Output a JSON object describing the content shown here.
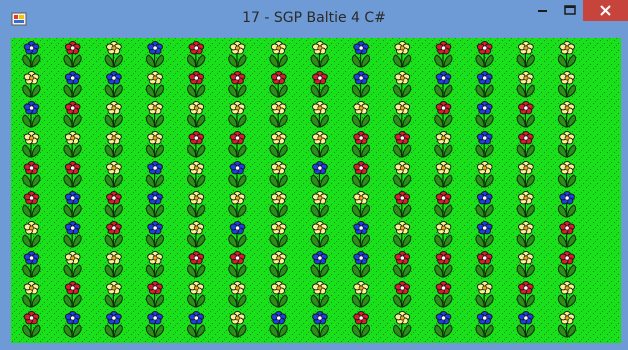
{
  "window": {
    "title": "17 - SGP Baltie 4 C#",
    "titlebar_color": "#6e9bd6",
    "close_color": "#c7443c"
  },
  "icons": {
    "app": "app-icon",
    "minimize": "minimize-icon",
    "maximize": "maximize-icon",
    "close": "close-icon",
    "tile": "flower-icon"
  },
  "playfield": {
    "background_color": "#19e01a",
    "flower_colors": {
      "blue": "#1c3fe6",
      "red": "#d81e2a",
      "yellow": "#f8f090"
    },
    "rows": [
      [
        "blue",
        "red",
        "yellow",
        "blue",
        "red",
        "yellow",
        "yellow",
        "yellow",
        "blue",
        "yellow",
        "red",
        "red",
        "yellow",
        "yellow"
      ],
      [
        "yellow",
        "blue",
        "blue",
        "yellow",
        "red",
        "red",
        "red",
        "red",
        "blue",
        "yellow",
        "blue",
        "blue",
        "yellow",
        "yellow"
      ],
      [
        "blue",
        "red",
        "yellow",
        "yellow",
        "yellow",
        "yellow",
        "yellow",
        "yellow",
        "yellow",
        "yellow",
        "red",
        "blue",
        "red",
        "yellow"
      ],
      [
        "yellow",
        "yellow",
        "yellow",
        "yellow",
        "red",
        "red",
        "yellow",
        "yellow",
        "red",
        "red",
        "yellow",
        "blue",
        "red",
        "yellow"
      ],
      [
        "red",
        "red",
        "yellow",
        "blue",
        "yellow",
        "blue",
        "yellow",
        "blue",
        "red",
        "yellow",
        "yellow",
        "yellow",
        "yellow",
        "yellow"
      ],
      [
        "red",
        "blue",
        "red",
        "blue",
        "yellow",
        "yellow",
        "yellow",
        "yellow",
        "yellow",
        "red",
        "red",
        "blue",
        "yellow",
        "blue"
      ],
      [
        "yellow",
        "blue",
        "red",
        "blue",
        "yellow",
        "blue",
        "yellow",
        "yellow",
        "blue",
        "yellow",
        "yellow",
        "blue",
        "yellow",
        "red"
      ],
      [
        "blue",
        "yellow",
        "yellow",
        "yellow",
        "red",
        "red",
        "yellow",
        "blue",
        "blue",
        "red",
        "red",
        "red",
        "yellow",
        "red"
      ],
      [
        "yellow",
        "red",
        "yellow",
        "red",
        "yellow",
        "yellow",
        "yellow",
        "yellow",
        "yellow",
        "red",
        "red",
        "yellow",
        "red",
        "yellow"
      ],
      [
        "red",
        "blue",
        "blue",
        "blue",
        "blue",
        "yellow",
        "blue",
        "blue",
        "red",
        "yellow",
        "blue",
        "blue",
        "blue",
        "yellow"
      ]
    ]
  }
}
